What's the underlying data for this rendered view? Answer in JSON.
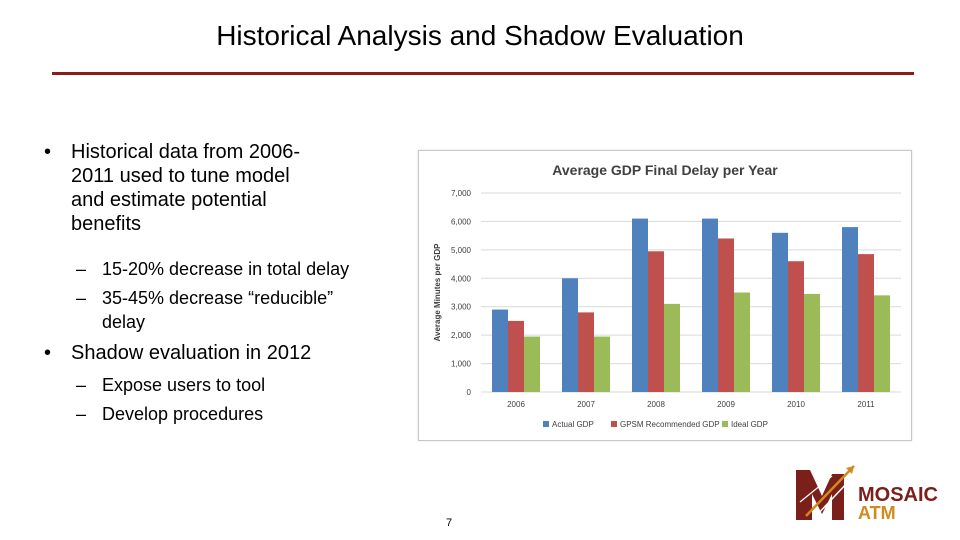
{
  "slide": {
    "title": "Historical Analysis and Shadow Evaluation",
    "page_number": "7"
  },
  "bullets": [
    {
      "text": "Historical data from 2006-2011 used to tune model and estimate potential benefits",
      "lines": [
        "Historical data from 2006-",
        "2011 used to tune model",
        "and estimate potential",
        "benefits"
      ],
      "sub": [
        {
          "lines": [
            "15-20% decrease in total delay"
          ]
        },
        {
          "lines": [
            "35-45% decrease “reducible”",
            "delay"
          ]
        }
      ]
    },
    {
      "lines": [
        "Shadow evaluation in 2012"
      ],
      "sub": [
        {
          "lines": [
            "Expose users to tool"
          ]
        },
        {
          "lines": [
            "Develop procedures"
          ]
        }
      ]
    }
  ],
  "bullet_symbol": "•",
  "dash_symbol": "–",
  "logo": {
    "line1": "MOSAIC",
    "line2": "ATM",
    "colors": {
      "maroon": "#7a1f1a",
      "gold": "#d18a1c"
    }
  },
  "chart_data": {
    "type": "bar",
    "title": "Average GDP Final Delay per Year",
    "xlabel": "",
    "ylabel": "Average Minutes per GDP",
    "categories": [
      "2006",
      "2007",
      "2008",
      "2009",
      "2010",
      "2011"
    ],
    "ylim": [
      0,
      7000
    ],
    "yticks": [
      "0",
      "1,000",
      "2,000",
      "3,000",
      "4,000",
      "5,000",
      "6,000",
      "7,000"
    ],
    "grid": true,
    "legend_position": "bottom",
    "series": [
      {
        "name": "Actual GDP",
        "color": "#4f81bd",
        "values": [
          2900,
          4000,
          6100,
          6100,
          5600,
          5800
        ]
      },
      {
        "name": "GPSM Recommended GDP",
        "color": "#c0504d",
        "values": [
          2500,
          2800,
          4950,
          5400,
          4600,
          4850
        ]
      },
      {
        "name": "Ideal GDP",
        "color": "#9bbb59",
        "values": [
          1950,
          1950,
          3100,
          3500,
          3450,
          3400
        ]
      }
    ]
  }
}
